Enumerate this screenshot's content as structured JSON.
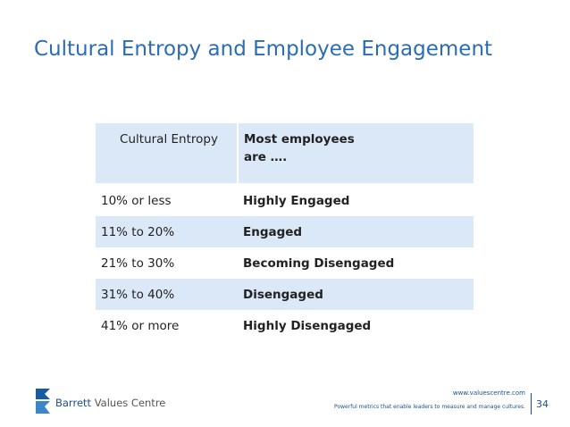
{
  "header": {
    "title": "Cultural Entropy and Employee Engagement"
  },
  "table": {
    "columns": [
      "Cultural Entropy",
      "Most employees are …."
    ],
    "rows": [
      [
        "10% or less",
        "Highly Engaged"
      ],
      [
        "11% to 20%",
        "Engaged"
      ],
      [
        "21% to 30%",
        "Becoming Disengaged"
      ],
      [
        "31% to 40%",
        "Disengaged"
      ],
      [
        "41% or more",
        "Highly Disengaged"
      ]
    ]
  },
  "footer": {
    "logo": {
      "name_part1": "Barrett",
      "name_part2": "Values Centre"
    },
    "website": "www.valuescentre.com",
    "tagline": "Powerful metrics that enable leaders to measure and manage cultures.",
    "page_number": "34"
  }
}
